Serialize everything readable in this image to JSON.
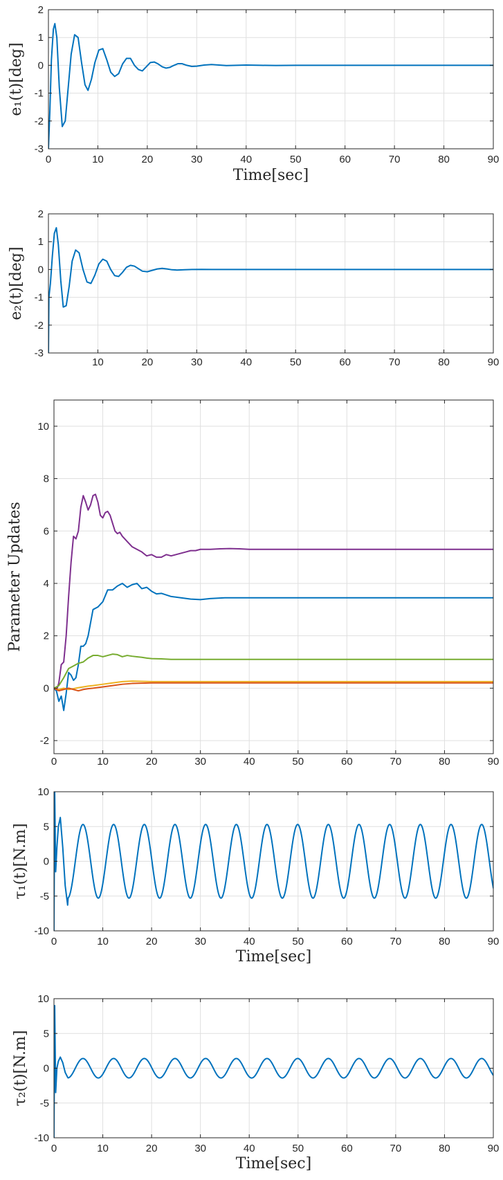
{
  "chart_data": [
    {
      "type": "line",
      "xlabel": "Time[sec]",
      "ylabel": "e₁(t)[deg]",
      "xlim": [
        0,
        90
      ],
      "ylim": [
        -3,
        2
      ],
      "xticks": [
        0,
        10,
        20,
        30,
        40,
        50,
        60,
        70,
        80,
        90
      ],
      "yticks": [
        -3,
        -2,
        -1,
        0,
        1,
        2
      ],
      "grid": true,
      "series": [
        {
          "color": "#0072BD",
          "x": [
            0,
            0.3,
            0.6,
            1.0,
            1.3,
            1.7,
            2.2,
            2.8,
            3.4,
            4.0,
            4.6,
            5.3,
            6.0,
            6.7,
            7.4,
            8.0,
            8.7,
            9.4,
            10.2,
            11.0,
            11.8,
            12.6,
            13.4,
            14.2,
            15.0,
            15.8,
            16.6,
            17.4,
            18.2,
            19.0,
            19.8,
            20.6,
            21.4,
            22.2,
            23.0,
            23.8,
            24.6,
            25.4,
            26.2,
            27.0,
            28.0,
            29.0,
            30.0,
            31.5,
            33.0,
            34.5,
            36.0,
            38.0,
            40.0,
            43.0,
            46.0,
            50.0,
            60.0,
            70.0,
            80.0,
            90.0
          ],
          "y": [
            -3.0,
            -1.6,
            0.2,
            1.3,
            1.5,
            1.0,
            -0.8,
            -2.2,
            -2.0,
            -0.8,
            0.4,
            1.1,
            1.0,
            0.1,
            -0.7,
            -0.9,
            -0.5,
            0.1,
            0.55,
            0.6,
            0.2,
            -0.25,
            -0.4,
            -0.3,
            0.05,
            0.25,
            0.25,
            0.0,
            -0.15,
            -0.2,
            -0.05,
            0.1,
            0.12,
            0.05,
            -0.05,
            -0.1,
            -0.07,
            0.0,
            0.06,
            0.06,
            0.0,
            -0.04,
            -0.03,
            0.01,
            0.03,
            0.01,
            -0.01,
            0.0,
            0.01,
            0.0,
            -0.005,
            0.0,
            0.0,
            0.0,
            0.0,
            0.0
          ]
        }
      ]
    },
    {
      "type": "line",
      "xlabel": "",
      "ylabel": "e₂(t)[deg]",
      "xlim": [
        0,
        90
      ],
      "ylim": [
        -3,
        2
      ],
      "xticks": [
        10,
        20,
        30,
        40,
        50,
        60,
        70,
        80,
        90
      ],
      "yticks": [
        -3,
        -2,
        -1,
        0,
        1,
        2
      ],
      "grid": true,
      "series": [
        {
          "color": "#0072BD",
          "x": [
            0,
            0.1,
            0.4,
            0.8,
            1.2,
            1.6,
            2.0,
            2.5,
            3.0,
            3.6,
            4.2,
            4.8,
            5.5,
            6.2,
            7.0,
            7.8,
            8.6,
            9.4,
            10.2,
            11.0,
            11.8,
            12.6,
            13.4,
            14.2,
            15.0,
            15.8,
            16.6,
            17.4,
            18.2,
            19.0,
            20.0,
            21.0,
            22.0,
            23.0,
            24.0,
            25.0,
            26.0,
            27.5,
            29.0,
            31.0,
            33.0,
            36.0,
            40.0,
            50.0,
            60.0,
            70.0,
            80.0,
            90.0
          ],
          "y": [
            -3.0,
            -1.0,
            -0.5,
            0.5,
            1.3,
            1.5,
            0.9,
            -0.4,
            -1.35,
            -1.3,
            -0.6,
            0.3,
            0.7,
            0.6,
            0.0,
            -0.45,
            -0.5,
            -0.2,
            0.2,
            0.37,
            0.3,
            0.0,
            -0.22,
            -0.25,
            -0.1,
            0.08,
            0.15,
            0.12,
            0.03,
            -0.06,
            -0.08,
            -0.03,
            0.02,
            0.04,
            0.02,
            -0.01,
            -0.02,
            -0.01,
            0.0,
            0.005,
            0.0,
            0.0,
            0.0,
            0.0,
            0.0,
            0.0,
            0.0,
            0.0
          ]
        }
      ]
    },
    {
      "type": "line",
      "xlabel": "",
      "ylabel": "Parameter Updates",
      "xlim": [
        0,
        90
      ],
      "ylim": [
        -2.5,
        11
      ],
      "xticks": [
        0,
        10,
        20,
        30,
        40,
        50,
        60,
        70,
        80,
        90
      ],
      "yticks": [
        -2,
        0,
        2,
        4,
        6,
        8,
        10
      ],
      "grid": true,
      "series": [
        {
          "color": "#7E2F8E",
          "x": [
            0,
            0.5,
            1.0,
            1.5,
            2.0,
            2.5,
            3.0,
            3.5,
            4.0,
            4.5,
            5.0,
            5.5,
            6.0,
            6.5,
            7.0,
            7.5,
            8.0,
            8.5,
            9.0,
            9.5,
            10.0,
            10.5,
            11.0,
            11.5,
            12.0,
            12.5,
            13.0,
            13.5,
            14.0,
            15.0,
            16.0,
            17.0,
            18.0,
            19.0,
            20.0,
            21.0,
            22.0,
            23.0,
            24.0,
            25.0,
            26.0,
            27.0,
            28.0,
            29.0,
            30.0,
            32.0,
            34.0,
            36.0,
            38.0,
            40.0,
            45.0,
            50.0,
            60.0,
            70.0,
            80.0,
            90.0
          ],
          "y": [
            0.0,
            -0.1,
            0.2,
            0.9,
            1.0,
            2.0,
            3.5,
            4.8,
            5.8,
            5.7,
            6.0,
            6.9,
            7.35,
            7.1,
            6.8,
            7.0,
            7.35,
            7.4,
            7.1,
            6.6,
            6.5,
            6.7,
            6.75,
            6.6,
            6.3,
            6.0,
            5.9,
            5.95,
            5.8,
            5.6,
            5.4,
            5.3,
            5.2,
            5.05,
            5.1,
            5.0,
            5.0,
            5.1,
            5.05,
            5.1,
            5.15,
            5.2,
            5.25,
            5.25,
            5.3,
            5.3,
            5.32,
            5.33,
            5.32,
            5.3,
            5.3,
            5.3,
            5.3,
            5.3,
            5.3,
            5.3
          ]
        },
        {
          "color": "#0072BD",
          "x": [
            0,
            0.5,
            1.0,
            1.5,
            2.0,
            2.5,
            3.0,
            3.5,
            4.0,
            4.5,
            5.0,
            5.5,
            6.0,
            6.5,
            7.0,
            8.0,
            9.0,
            10.0,
            11.0,
            12.0,
            13.0,
            14.0,
            15.0,
            16.0,
            17.0,
            18.0,
            19.0,
            20.0,
            21.0,
            22.0,
            24.0,
            26.0,
            28.0,
            30.0,
            32.0,
            35.0,
            40.0,
            50.0,
            60.0,
            70.0,
            80.0,
            90.0
          ],
          "y": [
            0.0,
            -0.1,
            -0.5,
            -0.3,
            -0.85,
            -0.2,
            0.6,
            0.5,
            0.3,
            0.4,
            0.9,
            1.6,
            1.6,
            1.7,
            2.0,
            3.0,
            3.1,
            3.3,
            3.75,
            3.75,
            3.9,
            4.0,
            3.85,
            3.95,
            4.0,
            3.8,
            3.85,
            3.7,
            3.6,
            3.62,
            3.5,
            3.45,
            3.4,
            3.38,
            3.42,
            3.45,
            3.45,
            3.45,
            3.45,
            3.45,
            3.45,
            3.45
          ]
        },
        {
          "color": "#77AC30",
          "x": [
            0,
            1.0,
            2.0,
            3.0,
            4.0,
            5.0,
            6.0,
            7.0,
            8.0,
            9.0,
            10.0,
            11.0,
            12.0,
            13.0,
            14.0,
            15.0,
            16.0,
            17.0,
            18.0,
            19.0,
            20.0,
            22.0,
            24.0,
            26.0,
            30.0,
            40.0,
            50.0,
            60.0,
            70.0,
            80.0,
            90.0
          ],
          "y": [
            0.0,
            0.1,
            0.4,
            0.75,
            0.85,
            0.95,
            1.0,
            1.15,
            1.25,
            1.25,
            1.2,
            1.25,
            1.3,
            1.28,
            1.2,
            1.25,
            1.22,
            1.2,
            1.18,
            1.15,
            1.13,
            1.12,
            1.1,
            1.1,
            1.1,
            1.1,
            1.1,
            1.1,
            1.1,
            1.1,
            1.1
          ]
        },
        {
          "color": "#EDB120",
          "x": [
            0,
            1.0,
            2.0,
            3.0,
            4.0,
            5.0,
            6.0,
            7.0,
            8.0,
            10.0,
            12.0,
            14.0,
            16.0,
            18.0,
            20.0,
            25.0,
            30.0,
            40.0,
            50.0,
            60.0,
            70.0,
            80.0,
            90.0
          ],
          "y": [
            0.0,
            -0.05,
            0.0,
            -0.05,
            -0.02,
            0.02,
            0.05,
            0.08,
            0.1,
            0.15,
            0.2,
            0.25,
            0.27,
            0.26,
            0.25,
            0.25,
            0.25,
            0.25,
            0.25,
            0.25,
            0.25,
            0.25,
            0.25
          ]
        },
        {
          "color": "#D95319",
          "x": [
            0,
            1.0,
            2.0,
            3.0,
            4.0,
            5.0,
            6.0,
            7.0,
            8.0,
            10.0,
            12.0,
            14.0,
            16.0,
            18.0,
            20.0,
            25.0,
            30.0,
            40.0,
            50.0,
            60.0,
            70.0,
            80.0,
            90.0
          ],
          "y": [
            0.0,
            -0.1,
            -0.05,
            0.0,
            -0.05,
            -0.1,
            -0.05,
            -0.02,
            0.0,
            0.05,
            0.1,
            0.15,
            0.18,
            0.19,
            0.2,
            0.2,
            0.2,
            0.2,
            0.2,
            0.2,
            0.2,
            0.2,
            0.2
          ]
        }
      ]
    },
    {
      "type": "line",
      "xlabel": "Time[sec]",
      "ylabel": "τ₁(t)[N.m]",
      "xlim": [
        0,
        90
      ],
      "ylim": [
        -10,
        10
      ],
      "xticks": [
        0,
        10,
        20,
        30,
        40,
        50,
        60,
        70,
        80,
        90
      ],
      "yticks": [
        -10,
        -5,
        0,
        5,
        10
      ],
      "grid": true,
      "series": [
        {
          "color": "#0072BD",
          "x": [
            0,
            0.15,
            0.35,
            0.6,
            0.9,
            1.3,
            1.8,
            2.3,
            2.8
          ],
          "y": [
            -10,
            10,
            -1.5,
            2.0,
            5.0,
            6.3,
            2.0,
            -3.5,
            -6.3
          ],
          "sine_tail": {
            "amplitude": 5.3,
            "period": 6.283,
            "phase_ref": 2.8,
            "x_end": 90,
            "start_value": -6.3
          }
        }
      ]
    },
    {
      "type": "line",
      "xlabel": "Time[sec]",
      "ylabel": "τ₂(t)[N.m]",
      "xlim": [
        0,
        90
      ],
      "ylim": [
        -10,
        10
      ],
      "xticks": [
        0,
        10,
        20,
        30,
        40,
        50,
        60,
        70,
        80,
        90
      ],
      "yticks": [
        -10,
        -5,
        0,
        5,
        10
      ],
      "grid": true,
      "series": [
        {
          "color": "#0072BD",
          "x": [
            0,
            0.15,
            0.35,
            0.6,
            0.9,
            1.3,
            1.8,
            2.3,
            2.8
          ],
          "y": [
            -10,
            9.0,
            -3.5,
            0.0,
            1.0,
            1.6,
            0.8,
            -0.6,
            -1.3
          ],
          "sine_tail": {
            "amplitude": 1.4,
            "period": 6.283,
            "phase_ref": 2.8,
            "x_end": 90,
            "start_value": -1.3
          }
        }
      ]
    }
  ]
}
